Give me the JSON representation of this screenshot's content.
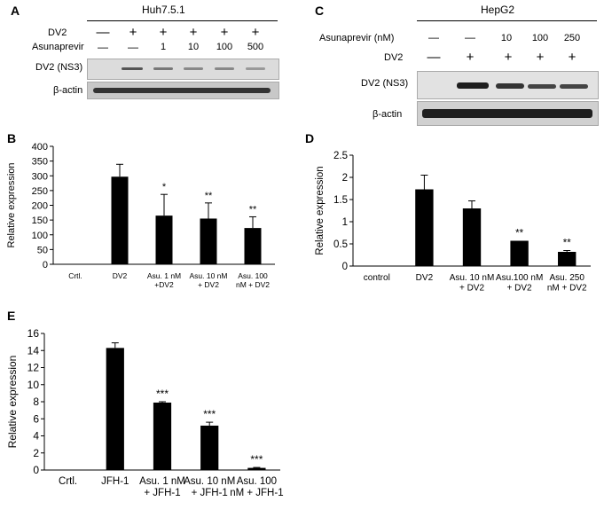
{
  "panels": {
    "A": {
      "letter": "A",
      "cell_line": "Huh7.5.1",
      "row_labels": [
        "DV2",
        "Asunaprevir"
      ],
      "dv2_row": [
        "—",
        "+",
        "+",
        "+",
        "+",
        "+"
      ],
      "asu_row": [
        "—",
        "—",
        "1",
        "10",
        "100",
        "500"
      ],
      "blot_labels": [
        "DV2 (NS3)",
        "β-actin"
      ]
    },
    "C": {
      "letter": "C",
      "cell_line": "HepG2",
      "row_labels": [
        "Asunaprevir (nM)",
        "DV2"
      ],
      "asu_row": [
        "—",
        "—",
        "10",
        "100",
        "250"
      ],
      "dv2_row": [
        "—",
        "+",
        "+",
        "+",
        "+"
      ],
      "blot_labels": [
        "DV2 (NS3)",
        "β-actin"
      ]
    },
    "B": {
      "letter": "B"
    },
    "D": {
      "letter": "D"
    },
    "E": {
      "letter": "E"
    }
  },
  "chart_data": [
    {
      "panel": "B",
      "type": "bar",
      "ylabel": "Relative expression",
      "ylim": [
        0,
        400
      ],
      "yticks": [
        0,
        50,
        100,
        150,
        200,
        250,
        300,
        350,
        400
      ],
      "categories": [
        "Crtl.",
        "DV2",
        "Asu. 1 nM +DV2",
        "Asu. 10 nM + DV2",
        "Asu. 100 nM + DV2"
      ],
      "values": [
        0,
        297,
        165,
        155,
        123
      ],
      "errors": [
        0,
        42,
        72,
        53,
        38
      ],
      "annotations": [
        "",
        "",
        "*",
        "**",
        "**"
      ],
      "bar_color": "#000000"
    },
    {
      "panel": "D",
      "type": "bar",
      "ylabel": "Relative expression",
      "ylim": [
        0,
        2.5
      ],
      "yticks": [
        0,
        0.5,
        1,
        1.5,
        2,
        2.5
      ],
      "categories": [
        "control",
        "DV2",
        "Asu. 10 nM + DV2",
        "Asu.100 nM + DV2",
        "Asu. 250 nM + DV2"
      ],
      "values": [
        0,
        1.73,
        1.3,
        0.57,
        0.32
      ],
      "errors": [
        0,
        0.32,
        0.17,
        0,
        0.03
      ],
      "annotations": [
        "",
        "",
        "",
        "**",
        "**"
      ],
      "bar_color": "#000000"
    },
    {
      "panel": "E",
      "type": "bar",
      "ylabel": "Relative expression",
      "ylim": [
        0,
        16
      ],
      "yticks": [
        0,
        2,
        4,
        6,
        8,
        10,
        12,
        14,
        16
      ],
      "categories": [
        "Crtl.",
        "JFH-1",
        "Asu. 1 nM + JFH-1",
        "Asu. 10 nM + JFH-1",
        "Asu. 100 nM + JFH-1"
      ],
      "values": [
        0,
        14.3,
        7.9,
        5.2,
        0.25
      ],
      "errors": [
        0,
        0.6,
        0.1,
        0.4,
        0.05
      ],
      "annotations": [
        "",
        "",
        "***",
        "***",
        "***"
      ],
      "bar_color": "#000000"
    }
  ]
}
